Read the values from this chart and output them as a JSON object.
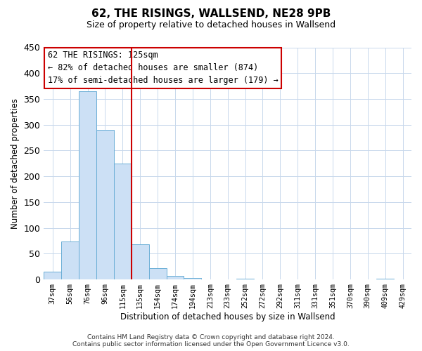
{
  "title": "62, THE RISINGS, WALLSEND, NE28 9PB",
  "subtitle": "Size of property relative to detached houses in Wallsend",
  "xlabel": "Distribution of detached houses by size in Wallsend",
  "ylabel": "Number of detached properties",
  "bar_labels": [
    "37sqm",
    "56sqm",
    "76sqm",
    "96sqm",
    "115sqm",
    "135sqm",
    "154sqm",
    "174sqm",
    "194sqm",
    "213sqm",
    "233sqm",
    "252sqm",
    "272sqm",
    "292sqm",
    "311sqm",
    "331sqm",
    "351sqm",
    "370sqm",
    "390sqm",
    "409sqm",
    "429sqm"
  ],
  "bar_values": [
    15,
    73,
    365,
    290,
    225,
    68,
    22,
    7,
    3,
    0,
    0,
    2,
    0,
    0,
    0,
    0,
    0,
    0,
    0,
    2,
    0
  ],
  "bar_color": "#cce0f5",
  "bar_edge_color": "#6baed6",
  "vline_x": 4.5,
  "vline_color": "#cc0000",
  "ylim": [
    0,
    450
  ],
  "yticks": [
    0,
    50,
    100,
    150,
    200,
    250,
    300,
    350,
    400,
    450
  ],
  "annotation_title": "62 THE RISINGS: 125sqm",
  "annotation_line1": "← 82% of detached houses are smaller (874)",
  "annotation_line2": "17% of semi-detached houses are larger (179) →",
  "annotation_box_facecolor": "#ffffff",
  "annotation_box_edgecolor": "#cc0000",
  "footer_line1": "Contains HM Land Registry data © Crown copyright and database right 2024.",
  "footer_line2": "Contains public sector information licensed under the Open Government Licence v3.0.",
  "background_color": "#ffffff",
  "grid_color": "#c8d8ec"
}
